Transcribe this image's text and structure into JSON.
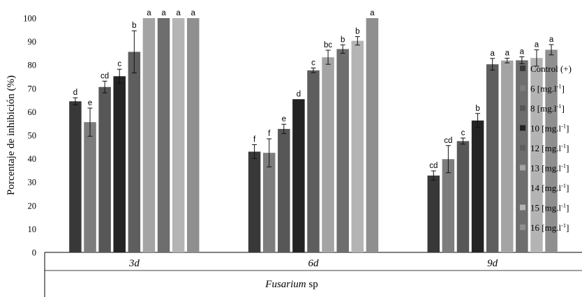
{
  "chart_data": {
    "type": "bar",
    "ylabel": "Porcentaje de inhibición (%)",
    "xlabel_italic": "Fusarium",
    "xlabel_rest": " sp",
    "ylim": [
      0,
      100
    ],
    "yticks": [
      "0",
      "10",
      "20",
      "30",
      "40",
      "50",
      "60",
      "70",
      "80",
      "90",
      "100"
    ],
    "categories": [
      "3d",
      "6d",
      "9d"
    ],
    "legend_position": "right",
    "series": [
      {
        "name": "Control (+)",
        "color": "#383838",
        "values": [
          64.5,
          43,
          32.8
        ],
        "errors": [
          1.5,
          3,
          2
        ],
        "letters": [
          "d",
          "f",
          "cd"
        ]
      },
      {
        "name": "6 [mg.l-1]",
        "color": "#7d7d7d",
        "values": [
          55.6,
          42.5,
          39.8
        ],
        "errors": [
          6,
          6,
          5.8
        ],
        "letters": [
          "e",
          "f",
          "cd"
        ]
      },
      {
        "name": "8 [mg.l-1]",
        "color": "#575757",
        "values": [
          70.6,
          52.7,
          47.5
        ],
        "errors": [
          2.5,
          2,
          1.3
        ],
        "letters": [
          "cd",
          "e",
          "c"
        ]
      },
      {
        "name": "10 [mg.l-1]",
        "color": "#232323",
        "values": [
          75.2,
          65.4,
          56.3
        ],
        "errors": [
          3,
          0,
          3
        ],
        "letters": [
          "c",
          "d",
          "b"
        ]
      },
      {
        "name": "12 [mg.l-1]",
        "color": "#5e5e5e",
        "values": [
          85.6,
          77.7,
          80.3
        ],
        "errors": [
          9,
          1,
          2.5
        ],
        "letters": [
          "b",
          "c",
          "a"
        ]
      },
      {
        "name": "13 [mg.l-1]",
        "color": "#a4a4a4",
        "values": [
          100,
          83.3,
          81.9
        ],
        "errors": [
          0,
          3,
          1
        ],
        "letters": [
          "a",
          "bc",
          "a"
        ]
      },
      {
        "name": "14 [mg.l-1]",
        "color": "#6e6e6e",
        "values": [
          100,
          86.8,
          82
        ],
        "errors": [
          0,
          1.8,
          1.5
        ],
        "letters": [
          "a",
          "b",
          "a"
        ]
      },
      {
        "name": "15 [mg.l-1]",
        "color": "#b4b4b4",
        "values": [
          100,
          90.3,
          83
        ],
        "errors": [
          0,
          1.8,
          3.5
        ],
        "letters": [
          "a",
          "b",
          "a"
        ]
      },
      {
        "name": "16 [mg.l-1]",
        "color": "#8f8f8f",
        "values": [
          100,
          100,
          86.5
        ],
        "errors": [
          0,
          0,
          2.2
        ],
        "letters": [
          "a",
          "a",
          "a"
        ]
      }
    ]
  }
}
